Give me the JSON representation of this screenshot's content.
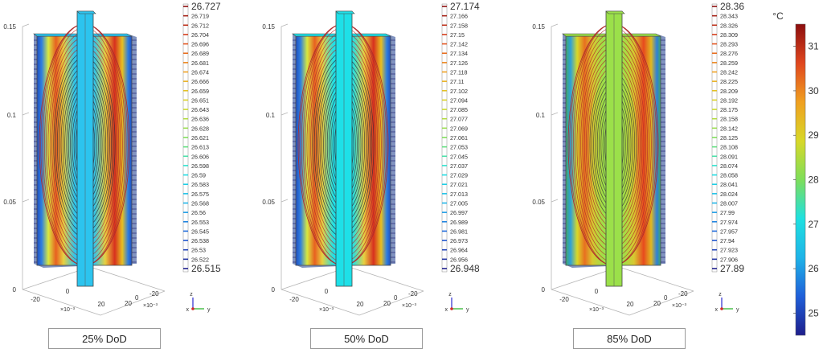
{
  "colors": {
    "blue_dark": "#1a1a8c",
    "cyan": "#1ed6f0",
    "green": "#9be04a",
    "red": "#c41e1e",
    "colorbar_stops": [
      "#1e1e8c",
      "#1f5fd9",
      "#1eb4e8",
      "#1ee0e0",
      "#7ede5a",
      "#d8d828",
      "#f0a020",
      "#e0461e",
      "#8c0e0e"
    ]
  },
  "chart_data": [
    {
      "type": "contour",
      "caption": "25% DoD",
      "surface_color": "#2cc4ee",
      "z_ticks": [
        "0.15",
        "0.1",
        "0.05",
        "0"
      ],
      "x_ticks": [
        "-20",
        "0",
        "20"
      ],
      "y_ticks": [
        "-20",
        "0",
        "20"
      ],
      "x_unit": "×10⁻³",
      "y_unit": "×10⁻³",
      "legend": {
        "max": "26.727",
        "min": "26.515",
        "levels": [
          "26.719",
          "26.712",
          "26.704",
          "26.696",
          "26.689",
          "26.681",
          "26.674",
          "26.666",
          "26.659",
          "26.651",
          "26.643",
          "26.636",
          "26.628",
          "26.621",
          "26.613",
          "26.606",
          "26.598",
          "26.59",
          "26.583",
          "26.575",
          "26.568",
          "26.56",
          "26.553",
          "26.545",
          "26.538",
          "26.53",
          "26.522"
        ]
      }
    },
    {
      "type": "contour",
      "caption": "50% DoD",
      "surface_color": "#1ee0e8",
      "z_ticks": [
        "0.15",
        "0.1",
        "0.05",
        "0"
      ],
      "x_ticks": [
        "-20",
        "0",
        "20"
      ],
      "y_ticks": [
        "-20",
        "0",
        "20"
      ],
      "x_unit": "×10⁻³",
      "y_unit": "×10⁻³",
      "legend": {
        "max": "27.174",
        "min": "26.948",
        "levels": [
          "27.166",
          "27.158",
          "27.15",
          "27.142",
          "27.134",
          "27.126",
          "27.118",
          "27.11",
          "27.102",
          "27.094",
          "27.085",
          "27.077",
          "27.069",
          "27.061",
          "27.053",
          "27.045",
          "27.037",
          "27.029",
          "27.021",
          "27.013",
          "27.005",
          "26.997",
          "26.989",
          "26.981",
          "26.973",
          "26.964",
          "26.956"
        ]
      }
    },
    {
      "type": "contour",
      "caption": "85% DoD",
      "surface_color": "#9be04a",
      "z_ticks": [
        "0.15",
        "0.1",
        "0.05",
        "0"
      ],
      "x_ticks": [
        "-20",
        "0",
        "20"
      ],
      "y_ticks": [
        "-20",
        "0",
        "20"
      ],
      "x_unit": "×10⁻³",
      "y_unit": "×10⁻³",
      "legend": {
        "max": "28.36",
        "min": "27.89",
        "levels": [
          "28.343",
          "28.326",
          "28.309",
          "28.293",
          "28.276",
          "28.259",
          "28.242",
          "28.225",
          "28.209",
          "28.192",
          "28.175",
          "28.158",
          "28.142",
          "28.125",
          "28.108",
          "28.091",
          "28.074",
          "28.058",
          "28.041",
          "28.024",
          "28.007",
          "27.99",
          "27.974",
          "27.957",
          "27.94",
          "27.923",
          "27.906"
        ]
      }
    }
  ],
  "colorbar": {
    "unit": "°C",
    "ticks": [
      "31",
      "30",
      "29",
      "28",
      "27",
      "26",
      "25"
    ],
    "range": [
      24.5,
      31.5
    ]
  },
  "triad": {
    "x": "x",
    "y": "y",
    "z": "z"
  }
}
